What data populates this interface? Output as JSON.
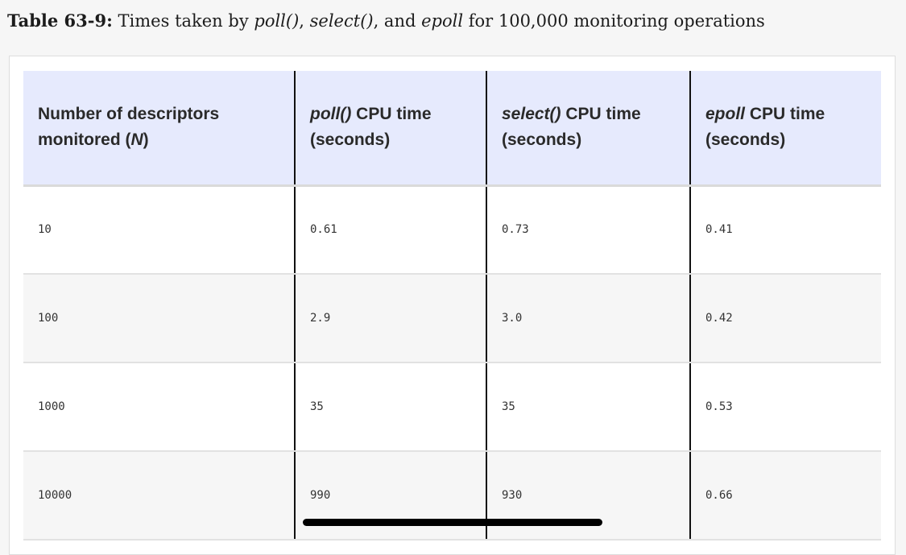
{
  "caption": {
    "label": "Table 63-9:",
    "text_1": " Times taken by ",
    "em_1": "poll()",
    "text_2": ", ",
    "em_2": "select()",
    "text_3": ", and ",
    "em_3": "epoll",
    "text_4": " for 100,000 monitoring operations"
  },
  "table": {
    "headers": [
      {
        "em": "",
        "text": "Number of descriptors monitored (",
        "em2": "N",
        "text2": ")"
      },
      {
        "em": "poll()",
        "text": " CPU time (seconds)",
        "em2": "",
        "text2": ""
      },
      {
        "em": "select()",
        "text": " CPU time (seconds)",
        "em2": "",
        "text2": ""
      },
      {
        "em": "epoll",
        "text": " CPU time (seconds)",
        "em2": "",
        "text2": ""
      }
    ],
    "rows": [
      [
        "10",
        "0.61",
        "0.73",
        "0.41"
      ],
      [
        "100",
        "2.9",
        "3.0",
        "0.42"
      ],
      [
        "1000",
        "35",
        "35",
        "0.53"
      ],
      [
        "10000",
        "990",
        "930",
        "0.66"
      ]
    ]
  }
}
